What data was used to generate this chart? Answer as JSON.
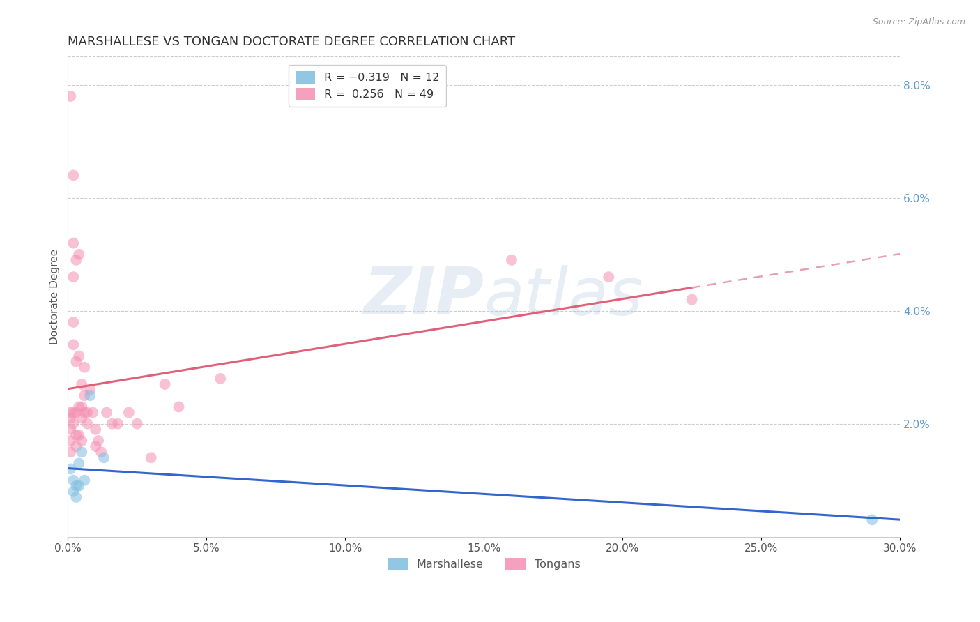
{
  "title": "MARSHALLESE VS TONGAN DOCTORATE DEGREE CORRELATION CHART",
  "source": "Source: ZipAtlas.com",
  "ylabel": "Doctorate Degree",
  "watermark_zip": "ZIP",
  "watermark_atlas": "atlas",
  "xlim": [
    0.0,
    0.3
  ],
  "ylim": [
    0.0,
    0.085
  ],
  "xtick_labels": [
    "0.0%",
    "5.0%",
    "10.0%",
    "15.0%",
    "20.0%",
    "25.0%",
    "30.0%"
  ],
  "xtick_values": [
    0.0,
    0.05,
    0.1,
    0.15,
    0.2,
    0.25,
    0.3
  ],
  "ytick_labels_right": [
    "2.0%",
    "4.0%",
    "6.0%",
    "8.0%"
  ],
  "ytick_values": [
    0.02,
    0.04,
    0.06,
    0.08
  ],
  "blue_color": "#7fbde0",
  "pink_color": "#f48fb1",
  "blue_line_color": "#3366cc",
  "pink_line_color": "#e0607a",
  "pink_dash_color": "#e8a0b0",
  "marshallese_x": [
    0.001,
    0.002,
    0.002,
    0.003,
    0.003,
    0.004,
    0.004,
    0.005,
    0.006,
    0.008,
    0.013,
    0.29
  ],
  "marshallese_y": [
    0.012,
    0.01,
    0.008,
    0.009,
    0.007,
    0.013,
    0.009,
    0.015,
    0.01,
    0.025,
    0.014,
    0.003
  ],
  "tongan_x": [
    0.001,
    0.001,
    0.001,
    0.001,
    0.001,
    0.001,
    0.002,
    0.002,
    0.002,
    0.002,
    0.002,
    0.002,
    0.002,
    0.003,
    0.003,
    0.003,
    0.003,
    0.003,
    0.004,
    0.004,
    0.004,
    0.004,
    0.005,
    0.005,
    0.005,
    0.005,
    0.006,
    0.006,
    0.006,
    0.007,
    0.007,
    0.008,
    0.009,
    0.01,
    0.01,
    0.011,
    0.012,
    0.014,
    0.016,
    0.018,
    0.022,
    0.025,
    0.03,
    0.035,
    0.04,
    0.055,
    0.16,
    0.195,
    0.225
  ],
  "tongan_y": [
    0.078,
    0.022,
    0.021,
    0.019,
    0.017,
    0.015,
    0.064,
    0.052,
    0.046,
    0.038,
    0.034,
    0.022,
    0.02,
    0.049,
    0.031,
    0.022,
    0.018,
    0.016,
    0.05,
    0.032,
    0.023,
    0.018,
    0.027,
    0.023,
    0.021,
    0.017,
    0.03,
    0.025,
    0.022,
    0.022,
    0.02,
    0.026,
    0.022,
    0.019,
    0.016,
    0.017,
    0.015,
    0.022,
    0.02,
    0.02,
    0.022,
    0.02,
    0.014,
    0.027,
    0.023,
    0.028,
    0.049,
    0.046,
    0.042
  ],
  "title_fontsize": 13,
  "axis_label_fontsize": 11,
  "tick_fontsize": 11,
  "marker_size": 130,
  "marker_alpha": 0.55,
  "grid_color": "#cccccc",
  "pink_line_x_solid_end": 0.225,
  "pink_line_x_dash_end": 0.3
}
